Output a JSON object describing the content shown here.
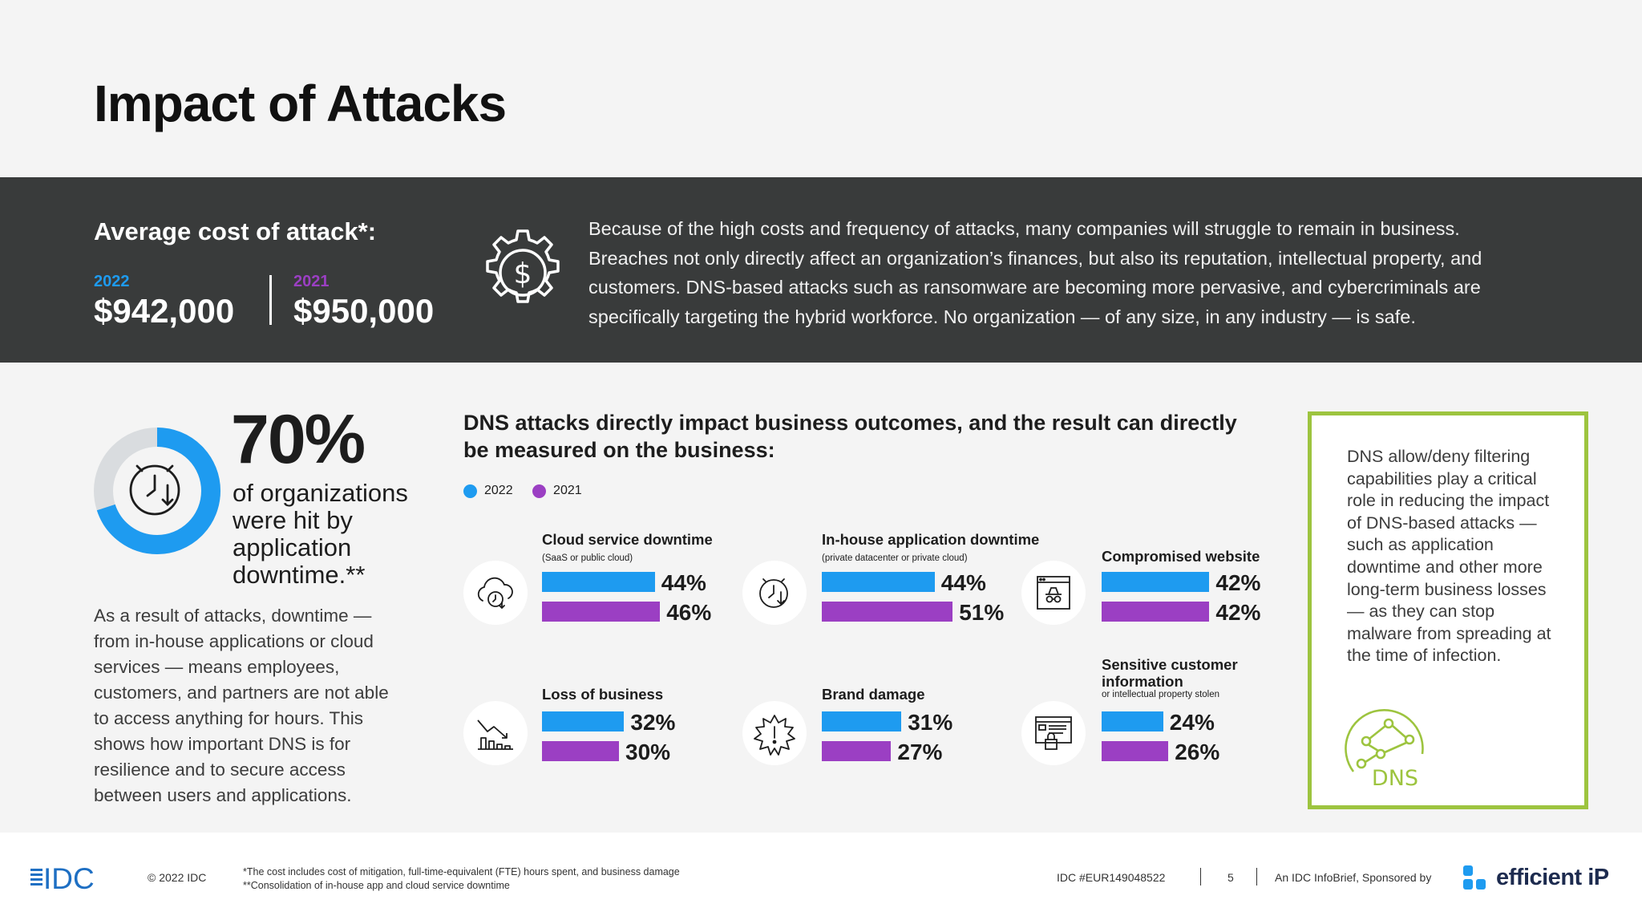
{
  "page": {
    "title": "Impact of Attacks"
  },
  "band": {
    "cost_label": "Average cost of attack*:",
    "year_a": "2022",
    "year_b": "2021",
    "amount_a": "$942,000",
    "amount_b": "$950,000",
    "paragraph": "Because of the high costs and frequency of attacks, many companies will struggle to remain in business. Breaches not only directly affect an organization’s finances, but also its reputation, intellectual property, and customers. DNS-based attacks such as ransomware are becoming more pervasive, and cybercriminals are specifically targeting the hybrid workforce. No organization — of any size, in any industry — is safe."
  },
  "donut": {
    "value": 70,
    "big_text": "70%",
    "description": "of organizations were hit by application downtime.**",
    "colors": {
      "fill": "#1e9bf0",
      "rest": "#d9dcdf"
    }
  },
  "left_paragraph": "As a result of attacks, downtime — from in-house applications or cloud services — means employees, customers, and partners are not able to access anything for hours. This shows how important DNS is for resilience and to secure access between users and applications.",
  "chart_heading": "DNS attacks directly impact business outcomes, and the result can directly be measured on the business:",
  "chart_data": {
    "type": "bar",
    "legend": [
      "2022",
      "2021"
    ],
    "colors": {
      "2022": "#1e9bf0",
      "2021": "#9b3fc3"
    },
    "categories": [
      {
        "label": "Cloud service downtime",
        "sub": "(SaaS or public cloud)",
        "icon": "cloud-clock-icon",
        "values": [
          44,
          46
        ],
        "value_labels": [
          "44%",
          "46%"
        ]
      },
      {
        "label": "In-house application downtime",
        "sub": "(private datacenter or private cloud)",
        "icon": "clock-icon",
        "values": [
          44,
          51
        ],
        "value_labels": [
          "44%",
          "51%"
        ]
      },
      {
        "label": "Compromised website",
        "sub": "",
        "icon": "spy-browser-icon",
        "values": [
          42,
          42
        ],
        "value_labels": [
          "42%",
          "42%"
        ]
      },
      {
        "label": "Loss of business",
        "sub": "",
        "icon": "declining-chart-icon",
        "values": [
          32,
          30
        ],
        "value_labels": [
          "32%",
          "30%"
        ]
      },
      {
        "label": "Brand damage",
        "sub": "",
        "icon": "alert-burst-icon",
        "values": [
          31,
          27
        ],
        "value_labels": [
          "31%",
          "27%"
        ]
      },
      {
        "label": "Sensitive customer information",
        "sub": "or intellectual property stolen",
        "icon": "locked-document-icon",
        "values": [
          24,
          26
        ],
        "value_labels": [
          "24%",
          "26%"
        ]
      }
    ]
  },
  "green_box": {
    "text": "DNS allow/deny filtering capabilities play a critical role in reducing the impact of DNS-based attacks — such as application downtime and other more long-term business losses — as they can stop malware from spreading at the time of infection.",
    "icon_label": "DNS"
  },
  "footer": {
    "logo": "IDC",
    "copyright": "© 2022 IDC",
    "footnote1": "*The cost includes cost of mitigation, full-time-equivalent (FTE) hours spent, and business damage",
    "footnote2": "**Consolidation of in-house app and cloud service downtime",
    "ref": "IDC #EUR149048522",
    "page_number": "5",
    "sponsor_text": "An IDC InfoBrief, Sponsored by",
    "sponsor_logo": "efficient iP"
  }
}
